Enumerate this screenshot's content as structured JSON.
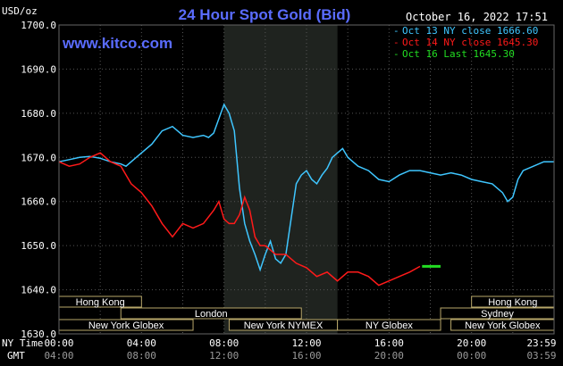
{
  "chart_data": {
    "type": "line",
    "title": "24 Hour Spot Gold (Bid)",
    "watermark": "www.kitco.com",
    "date_stamp": "October 16, 2022 17:51",
    "ylabel": "USD/oz",
    "ylim": [
      1630,
      1700
    ],
    "yticks": [
      "1700.0",
      "1690.0",
      "1680.0",
      "1670.0",
      "1660.0",
      "1650.0",
      "1640.0",
      "1630.0"
    ],
    "xaxis_labels": {
      "ny_time_label": "NY Time",
      "gmt_label": "GMT",
      "ny_ticks": [
        "00:00",
        "04:00",
        "08:00",
        "12:00",
        "16:00",
        "20:00",
        "23:59"
      ],
      "gmt_ticks": [
        "04:00",
        "08:00",
        "12:00",
        "16:00",
        "20:00",
        "00:00",
        "03:59"
      ]
    },
    "grid": true,
    "legend_position": "top-right",
    "series": [
      {
        "name": "Oct 13 NY close 1666.60",
        "color": "#3fc6ff",
        "x": [
          0,
          0.5,
          1,
          1.5,
          2,
          2.5,
          3,
          3.25,
          3.5,
          4,
          4.5,
          5,
          5.5,
          6,
          6.5,
          7,
          7.25,
          7.5,
          8,
          8.25,
          8.5,
          8.75,
          9,
          9.25,
          9.5,
          9.75,
          10,
          10.25,
          10.5,
          10.75,
          11,
          11.25,
          11.5,
          11.75,
          12,
          12.25,
          12.5,
          12.75,
          13,
          13.25,
          13.5,
          13.75,
          14,
          14.5,
          15,
          15.5,
          16,
          16.5,
          17,
          17.5,
          18,
          18.5,
          19,
          19.5,
          20,
          20.5,
          21,
          21.5,
          21.75,
          22,
          22.25,
          22.5,
          23,
          23.5,
          23.99
        ],
        "values": [
          1669,
          1669.5,
          1670,
          1670.2,
          1669.8,
          1669,
          1668.5,
          1668,
          1669,
          1671,
          1673,
          1676,
          1677,
          1675,
          1674.5,
          1675,
          1674.5,
          1675.5,
          1682,
          1680,
          1676,
          1663,
          1655,
          1651,
          1648,
          1644.5,
          1648,
          1651,
          1647,
          1646,
          1648,
          1656,
          1664,
          1666,
          1667,
          1665,
          1664,
          1666,
          1667.5,
          1670,
          1671,
          1672,
          1670,
          1668,
          1667,
          1665,
          1664.5,
          1666,
          1667,
          1667,
          1666.5,
          1666,
          1666.5,
          1666,
          1665,
          1664.5,
          1664,
          1662,
          1660,
          1661,
          1665,
          1667,
          1668,
          1669,
          1669
        ]
      },
      {
        "name": "Oct 14 NY close 1645.30",
        "color": "#ff1a1a",
        "x": [
          0,
          0.5,
          1,
          1.5,
          2,
          2.5,
          3,
          3.5,
          4,
          4.5,
          5,
          5.5,
          6,
          6.5,
          7,
          7.5,
          7.75,
          8,
          8.25,
          8.5,
          8.75,
          9,
          9.25,
          9.5,
          9.75,
          10,
          10.5,
          11,
          11.5,
          12,
          12.5,
          13,
          13.5,
          14,
          14.5,
          15,
          15.5,
          16,
          16.5,
          17,
          17.5
        ],
        "values": [
          1669,
          1668,
          1668.5,
          1670,
          1671,
          1669,
          1668,
          1664,
          1662,
          1659,
          1655,
          1652,
          1655,
          1654,
          1655,
          1658,
          1660,
          1656,
          1655,
          1655,
          1657,
          1661,
          1658,
          1652,
          1650,
          1650,
          1648,
          1648,
          1646,
          1645,
          1643,
          1644,
          1642,
          1644,
          1644,
          1643,
          1641,
          1642,
          1643,
          1644,
          1645.3
        ]
      },
      {
        "name": "Oct 16 Last 1645.30",
        "color": "#22dd22",
        "x": [
          17.6,
          18.5
        ],
        "values": [
          1645.3,
          1645.3
        ]
      }
    ],
    "highlight_band_hours": [
      8,
      13.5
    ],
    "market_sessions": [
      {
        "name": "Hong Kong",
        "start": 0,
        "end": 4
      },
      {
        "name": "London",
        "start": 3,
        "end": 11.75
      },
      {
        "name": "New York Globex",
        "start": 0,
        "end": 6.5
      },
      {
        "name": "New York NYMEX",
        "start": 8.25,
        "end": 13.5
      },
      {
        "name": "NY Globex",
        "start": 13.5,
        "end": 18.5
      },
      {
        "name": "Hong Kong",
        "start": 20,
        "end": 24
      },
      {
        "name": "Sydney",
        "start": 18.5,
        "end": 24
      },
      {
        "name": "New York Globex",
        "start": 19,
        "end": 24
      }
    ]
  }
}
